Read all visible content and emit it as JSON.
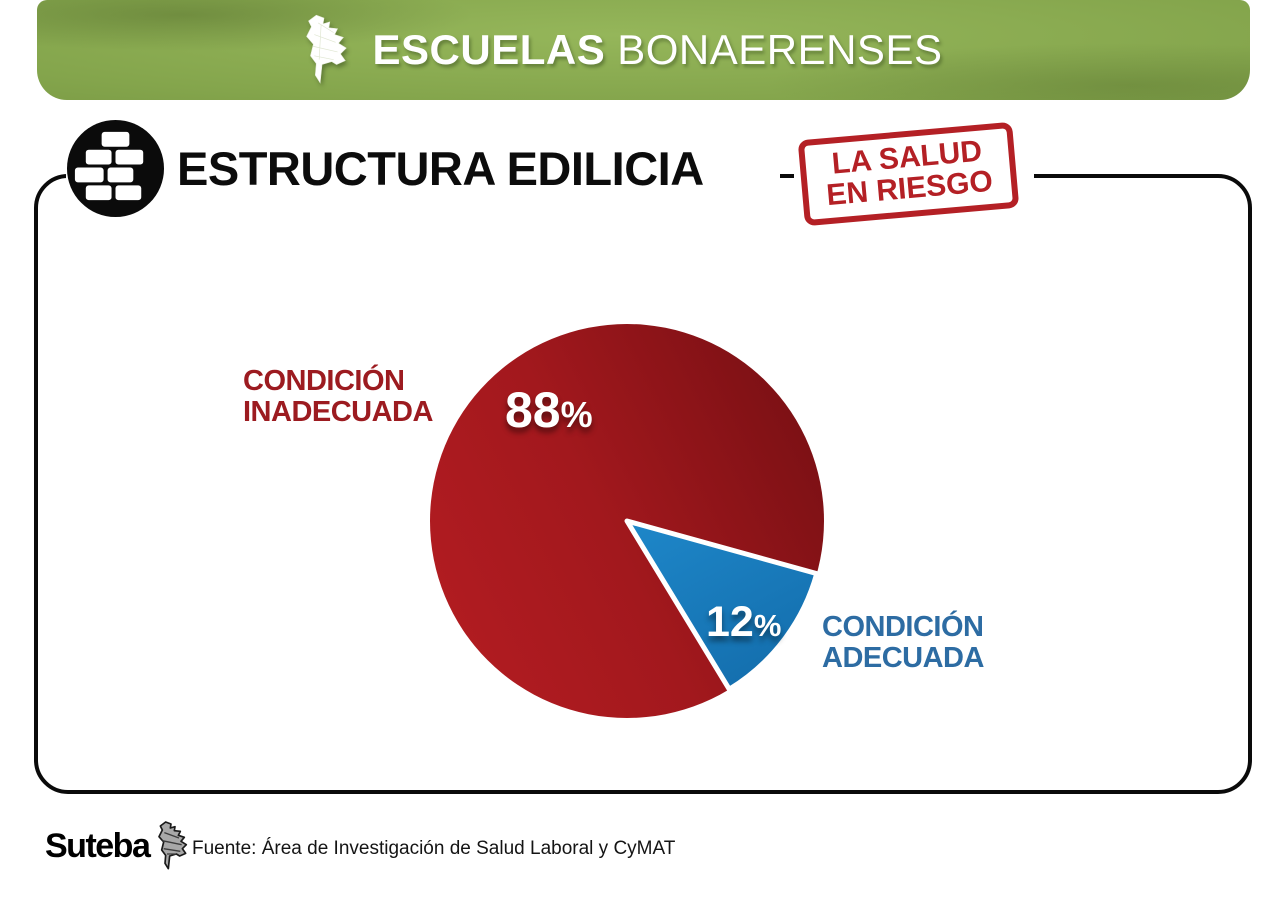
{
  "header": {
    "title_bold": "ESCUELAS",
    "title_light": "BONAERENSES"
  },
  "section": {
    "title": "ESTRUCTURA EDILICIA"
  },
  "stamp": {
    "line1": "LA SALUD",
    "line2": "EN RIESGO"
  },
  "chart_data": {
    "type": "pie",
    "title": "ESTRUCTURA EDILICIA",
    "slices": [
      {
        "label": "CONDICIÓN INADECUADA",
        "value": 88,
        "color": "#a01a1e"
      },
      {
        "label": "CONDICIÓN ADECUADA",
        "value": 12,
        "color": "#1a7fc1"
      }
    ],
    "legend_position": "beside-slices",
    "data_labels": [
      "88%",
      "12%"
    ]
  },
  "labels": {
    "inadequate_line1": "CONDICIÓN",
    "inadequate_line2": "INADECUADA",
    "adequate_line1": "CONDICIÓN",
    "adequate_line2": "ADECUADA",
    "pct_symbol": "%"
  },
  "footer": {
    "logo_text": "Suteba",
    "source": "Fuente: Área de Investigación de Salud Laboral y CyMAT"
  },
  "colors": {
    "banner_green": "#84a54c",
    "stamp_red": "#b42025",
    "pie_red_bright": "#b21c21",
    "pie_red_dark": "#7a1014",
    "pie_blue": "#1a7fc1",
    "label_red": "#9c1b20",
    "label_blue": "#2d6ca3"
  }
}
